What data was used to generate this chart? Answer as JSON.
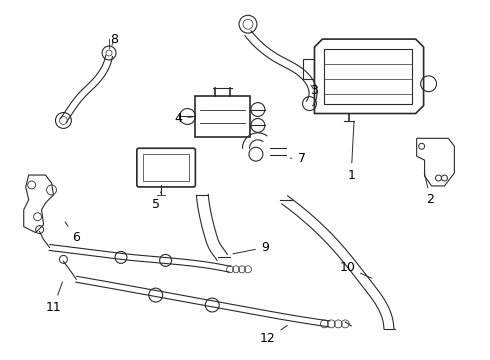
{
  "background_color": "#ffffff",
  "line_color": "#2a2a2a",
  "label_color": "#000000",
  "fig_width": 4.9,
  "fig_height": 3.6,
  "dpi": 100
}
